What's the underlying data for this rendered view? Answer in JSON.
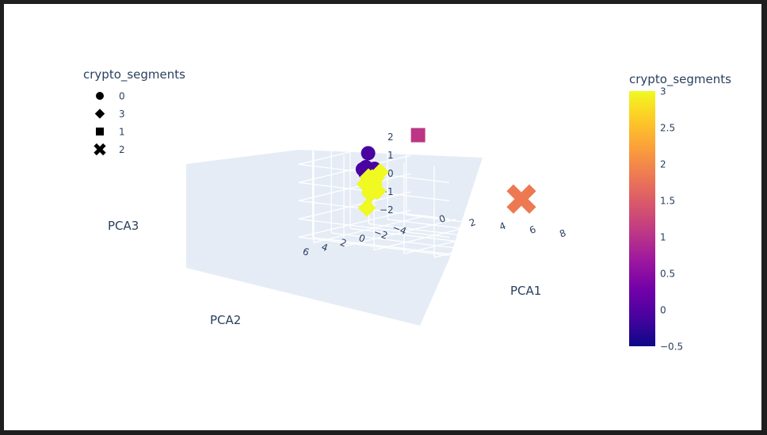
{
  "chart_data": {
    "type": "scatter3d",
    "title": "",
    "axes": {
      "x": {
        "title": "PCA1",
        "ticks": [
          "0",
          "2",
          "4",
          "6",
          "8"
        ],
        "range": [
          -1,
          9
        ]
      },
      "y": {
        "title": "PCA2",
        "ticks": [
          "−4",
          "−2",
          "0",
          "2",
          "4",
          "6"
        ],
        "range": [
          -4.5,
          7.5
        ]
      },
      "z": {
        "title": "PCA3",
        "ticks": [
          "−2",
          "−1",
          "0",
          "1",
          "2"
        ],
        "range": [
          -2.2,
          2.8
        ]
      }
    },
    "legend": {
      "title": "crypto_segments",
      "placement": "top-left",
      "items": [
        {
          "label": "0",
          "symbol": "circle"
        },
        {
          "label": "3",
          "symbol": "diamond"
        },
        {
          "label": "1",
          "symbol": "square"
        },
        {
          "label": "2",
          "symbol": "x"
        }
      ]
    },
    "colorbar": {
      "title": "crypto_segments",
      "range": [
        -0.5,
        3
      ],
      "ticks": [
        "3",
        "2.5",
        "2",
        "1.5",
        "1",
        "0.5",
        "0",
        "−0.5"
      ],
      "colors": [
        "#0d0887",
        "#46039f",
        "#7201a8",
        "#9c179e",
        "#bd3786",
        "#d8576b",
        "#ed7953",
        "#fb9f3a",
        "#fdca26",
        "#f0f921"
      ]
    },
    "series": [
      {
        "name": "0",
        "symbol": "circle",
        "color": "#4a02a0",
        "points": [
          [
            -0.3,
            1.2,
            1.9
          ],
          [
            -0.2,
            1.6,
            1.2
          ],
          [
            0.1,
            1.9,
            1.0
          ],
          [
            -0.1,
            1.8,
            0.9
          ],
          [
            0.2,
            1.5,
            0.9
          ],
          [
            0.4,
            1.9,
            0.9
          ],
          [
            0.5,
            2.3,
            1.0
          ],
          [
            0.4,
            2.9,
            1.3
          ],
          [
            0.8,
            2.8,
            1.0
          ],
          [
            0.0,
            1.0,
            1.05
          ]
        ]
      },
      {
        "name": "3",
        "symbol": "diamond",
        "color": "#f0f921",
        "points": [
          [
            -1.0,
            -1.2,
            0.5
          ],
          [
            -0.9,
            0.2,
            0.4
          ],
          [
            -0.7,
            0.0,
            0.1
          ],
          [
            -0.5,
            0.3,
            0.0
          ],
          [
            -0.6,
            0.5,
            -0.2
          ],
          [
            -0.3,
            0.6,
            0.1
          ],
          [
            -0.4,
            0.8,
            -0.4
          ],
          [
            -0.2,
            0.9,
            0.0
          ],
          [
            -0.5,
            0.6,
            0.3
          ],
          [
            -0.1,
            1.3,
            -0.2
          ],
          [
            0.0,
            0.9,
            0.5
          ],
          [
            -0.3,
            0.2,
            -0.3
          ],
          [
            -1.0,
            0.2,
            -1.3
          ],
          [
            -0.8,
            0.7,
            0.1
          ],
          [
            -0.6,
            0.3,
            0.4
          ]
        ]
      },
      {
        "name": "1",
        "symbol": "square",
        "color": "#bc3685",
        "points": [
          [
            -0.4,
            -4.3,
            2.2
          ]
        ]
      },
      {
        "name": "2",
        "symbol": "x",
        "color": "#ed7953",
        "points": [
          [
            8.2,
            -1.5,
            -0.1
          ]
        ]
      }
    ]
  }
}
